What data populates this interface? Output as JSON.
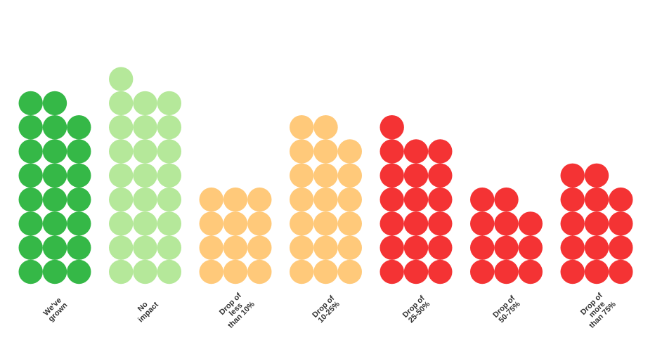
{
  "chart_data": {
    "type": "dot-column",
    "categories": [
      [
        "We've",
        "grown"
      ],
      [
        "No",
        "impact"
      ],
      [
        "Drop of",
        "less",
        "than 10%"
      ],
      [
        "Drop of",
        "10-25%"
      ],
      [
        "Drop of",
        "25-50%"
      ],
      [
        "Drop of",
        "50-75%"
      ],
      [
        "Drop of",
        "more",
        "than 75%"
      ]
    ],
    "values": [
      23,
      25,
      12,
      20,
      19,
      11,
      14
    ],
    "colors": [
      "#35b847",
      "#b5e89a",
      "#ffc97a",
      "#ffc97a",
      "#f43334",
      "#f43334",
      "#f43334"
    ],
    "dots_per_row": 3
  }
}
